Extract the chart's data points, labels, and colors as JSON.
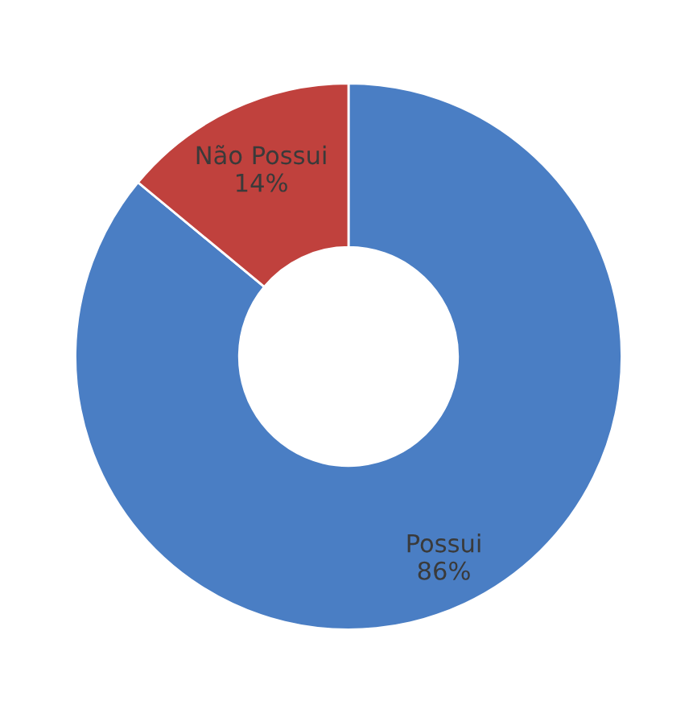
{
  "chart_data": {
    "type": "donut",
    "categories": [
      "Possui",
      "Não Possui"
    ],
    "values": [
      86,
      14
    ],
    "colors": [
      "#4a7ec4",
      "#c0413d"
    ],
    "value_labels": [
      "86%",
      "14%"
    ],
    "legend": false
  }
}
